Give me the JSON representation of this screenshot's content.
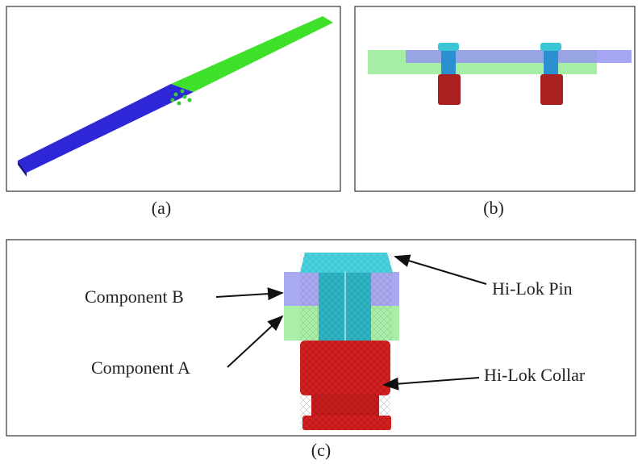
{
  "panels": [
    {
      "label": "(a)"
    },
    {
      "label": "(b)"
    },
    {
      "label": "(c)"
    }
  ],
  "annotations": [
    "Component B",
    "Component A",
    "Hi-Lok Pin",
    "Hi-Lok Collar"
  ]
}
